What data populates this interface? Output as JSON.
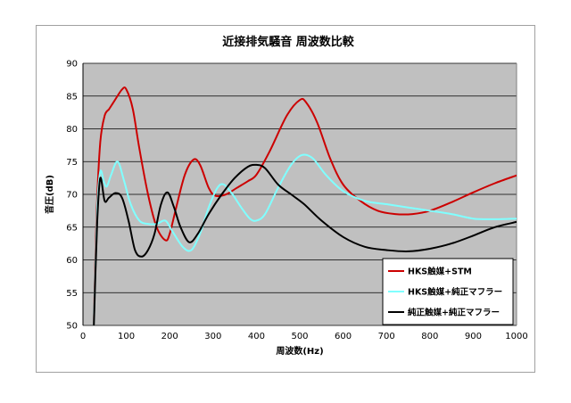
{
  "chart_data": {
    "type": "line",
    "title": "近接排気騒音 周波数比較",
    "xlabel": "周波数(Hz)",
    "ylabel": "音圧(dB)",
    "xlim": [
      0,
      1000
    ],
    "ylim": [
      50,
      90
    ],
    "xticks": [
      0,
      100,
      200,
      300,
      400,
      500,
      600,
      700,
      800,
      900,
      1000
    ],
    "yticks": [
      50,
      55,
      60,
      65,
      70,
      75,
      80,
      85,
      90
    ],
    "grid": "horizontal",
    "legend_position": "bottom-right",
    "plot_background": "#c0c0c0",
    "series": [
      {
        "name": "HKS触媒+STM",
        "color": "#cc0000",
        "points": [
          [
            25,
            50
          ],
          [
            32,
            68
          ],
          [
            40,
            78
          ],
          [
            50,
            82
          ],
          [
            60,
            83
          ],
          [
            70,
            84
          ],
          [
            90,
            86
          ],
          [
            100,
            86
          ],
          [
            115,
            83
          ],
          [
            130,
            77
          ],
          [
            150,
            70
          ],
          [
            170,
            65
          ],
          [
            190,
            63
          ],
          [
            200,
            64
          ],
          [
            215,
            68
          ],
          [
            235,
            73
          ],
          [
            255,
            75.3
          ],
          [
            270,
            74.5
          ],
          [
            290,
            71
          ],
          [
            305,
            69.8
          ],
          [
            330,
            70
          ],
          [
            355,
            71
          ],
          [
            380,
            72
          ],
          [
            400,
            73
          ],
          [
            430,
            76.5
          ],
          [
            470,
            82
          ],
          [
            500,
            84.4
          ],
          [
            515,
            84
          ],
          [
            540,
            81
          ],
          [
            570,
            75.5
          ],
          [
            600,
            71.5
          ],
          [
            640,
            69
          ],
          [
            680,
            67.5
          ],
          [
            720,
            67
          ],
          [
            760,
            67
          ],
          [
            800,
            67.5
          ],
          [
            850,
            68.8
          ],
          [
            900,
            70.3
          ],
          [
            950,
            71.7
          ],
          [
            1000,
            72.9
          ]
        ]
      },
      {
        "name": "HKS触媒+純正マフラー",
        "color": "#80ffff",
        "points": [
          [
            25,
            50
          ],
          [
            33,
            68
          ],
          [
            40,
            73.5
          ],
          [
            48,
            72
          ],
          [
            55,
            71.2
          ],
          [
            65,
            73
          ],
          [
            80,
            75
          ],
          [
            95,
            72
          ],
          [
            110,
            68.5
          ],
          [
            130,
            66
          ],
          [
            150,
            65.5
          ],
          [
            170,
            65.5
          ],
          [
            190,
            66
          ],
          [
            205,
            64.5
          ],
          [
            230,
            62
          ],
          [
            250,
            61.5
          ],
          [
            270,
            64
          ],
          [
            290,
            68
          ],
          [
            310,
            71
          ],
          [
            325,
            71.5
          ],
          [
            345,
            70
          ],
          [
            365,
            68
          ],
          [
            385,
            66.3
          ],
          [
            400,
            66
          ],
          [
            420,
            67
          ],
          [
            450,
            71
          ],
          [
            480,
            74.5
          ],
          [
            505,
            76
          ],
          [
            530,
            75.5
          ],
          [
            560,
            73
          ],
          [
            600,
            70.5
          ],
          [
            650,
            69
          ],
          [
            700,
            68.5
          ],
          [
            750,
            68
          ],
          [
            800,
            67.5
          ],
          [
            850,
            67
          ],
          [
            900,
            66.3
          ],
          [
            950,
            66.2
          ],
          [
            1000,
            66.3
          ]
        ]
      },
      {
        "name": "純正触媒+純正マフラー",
        "color": "#000000",
        "points": [
          [
            25,
            50
          ],
          [
            33,
            66
          ],
          [
            40,
            72.5
          ],
          [
            50,
            69
          ],
          [
            60,
            69.5
          ],
          [
            75,
            70.2
          ],
          [
            90,
            69.5
          ],
          [
            105,
            66
          ],
          [
            120,
            61.5
          ],
          [
            135,
            60.5
          ],
          [
            150,
            61.5
          ],
          [
            165,
            64
          ],
          [
            180,
            68.5
          ],
          [
            195,
            70.3
          ],
          [
            210,
            68
          ],
          [
            225,
            65
          ],
          [
            245,
            62.7
          ],
          [
            265,
            64
          ],
          [
            290,
            67
          ],
          [
            320,
            70
          ],
          [
            350,
            72.5
          ],
          [
            380,
            74.2
          ],
          [
            400,
            74.5
          ],
          [
            420,
            74
          ],
          [
            450,
            71.5
          ],
          [
            480,
            70
          ],
          [
            510,
            68.5
          ],
          [
            550,
            66
          ],
          [
            600,
            63.5
          ],
          [
            650,
            62
          ],
          [
            700,
            61.5
          ],
          [
            750,
            61.3
          ],
          [
            800,
            61.7
          ],
          [
            850,
            62.5
          ],
          [
            900,
            63.7
          ],
          [
            950,
            65
          ],
          [
            1000,
            65.8
          ]
        ]
      }
    ]
  }
}
